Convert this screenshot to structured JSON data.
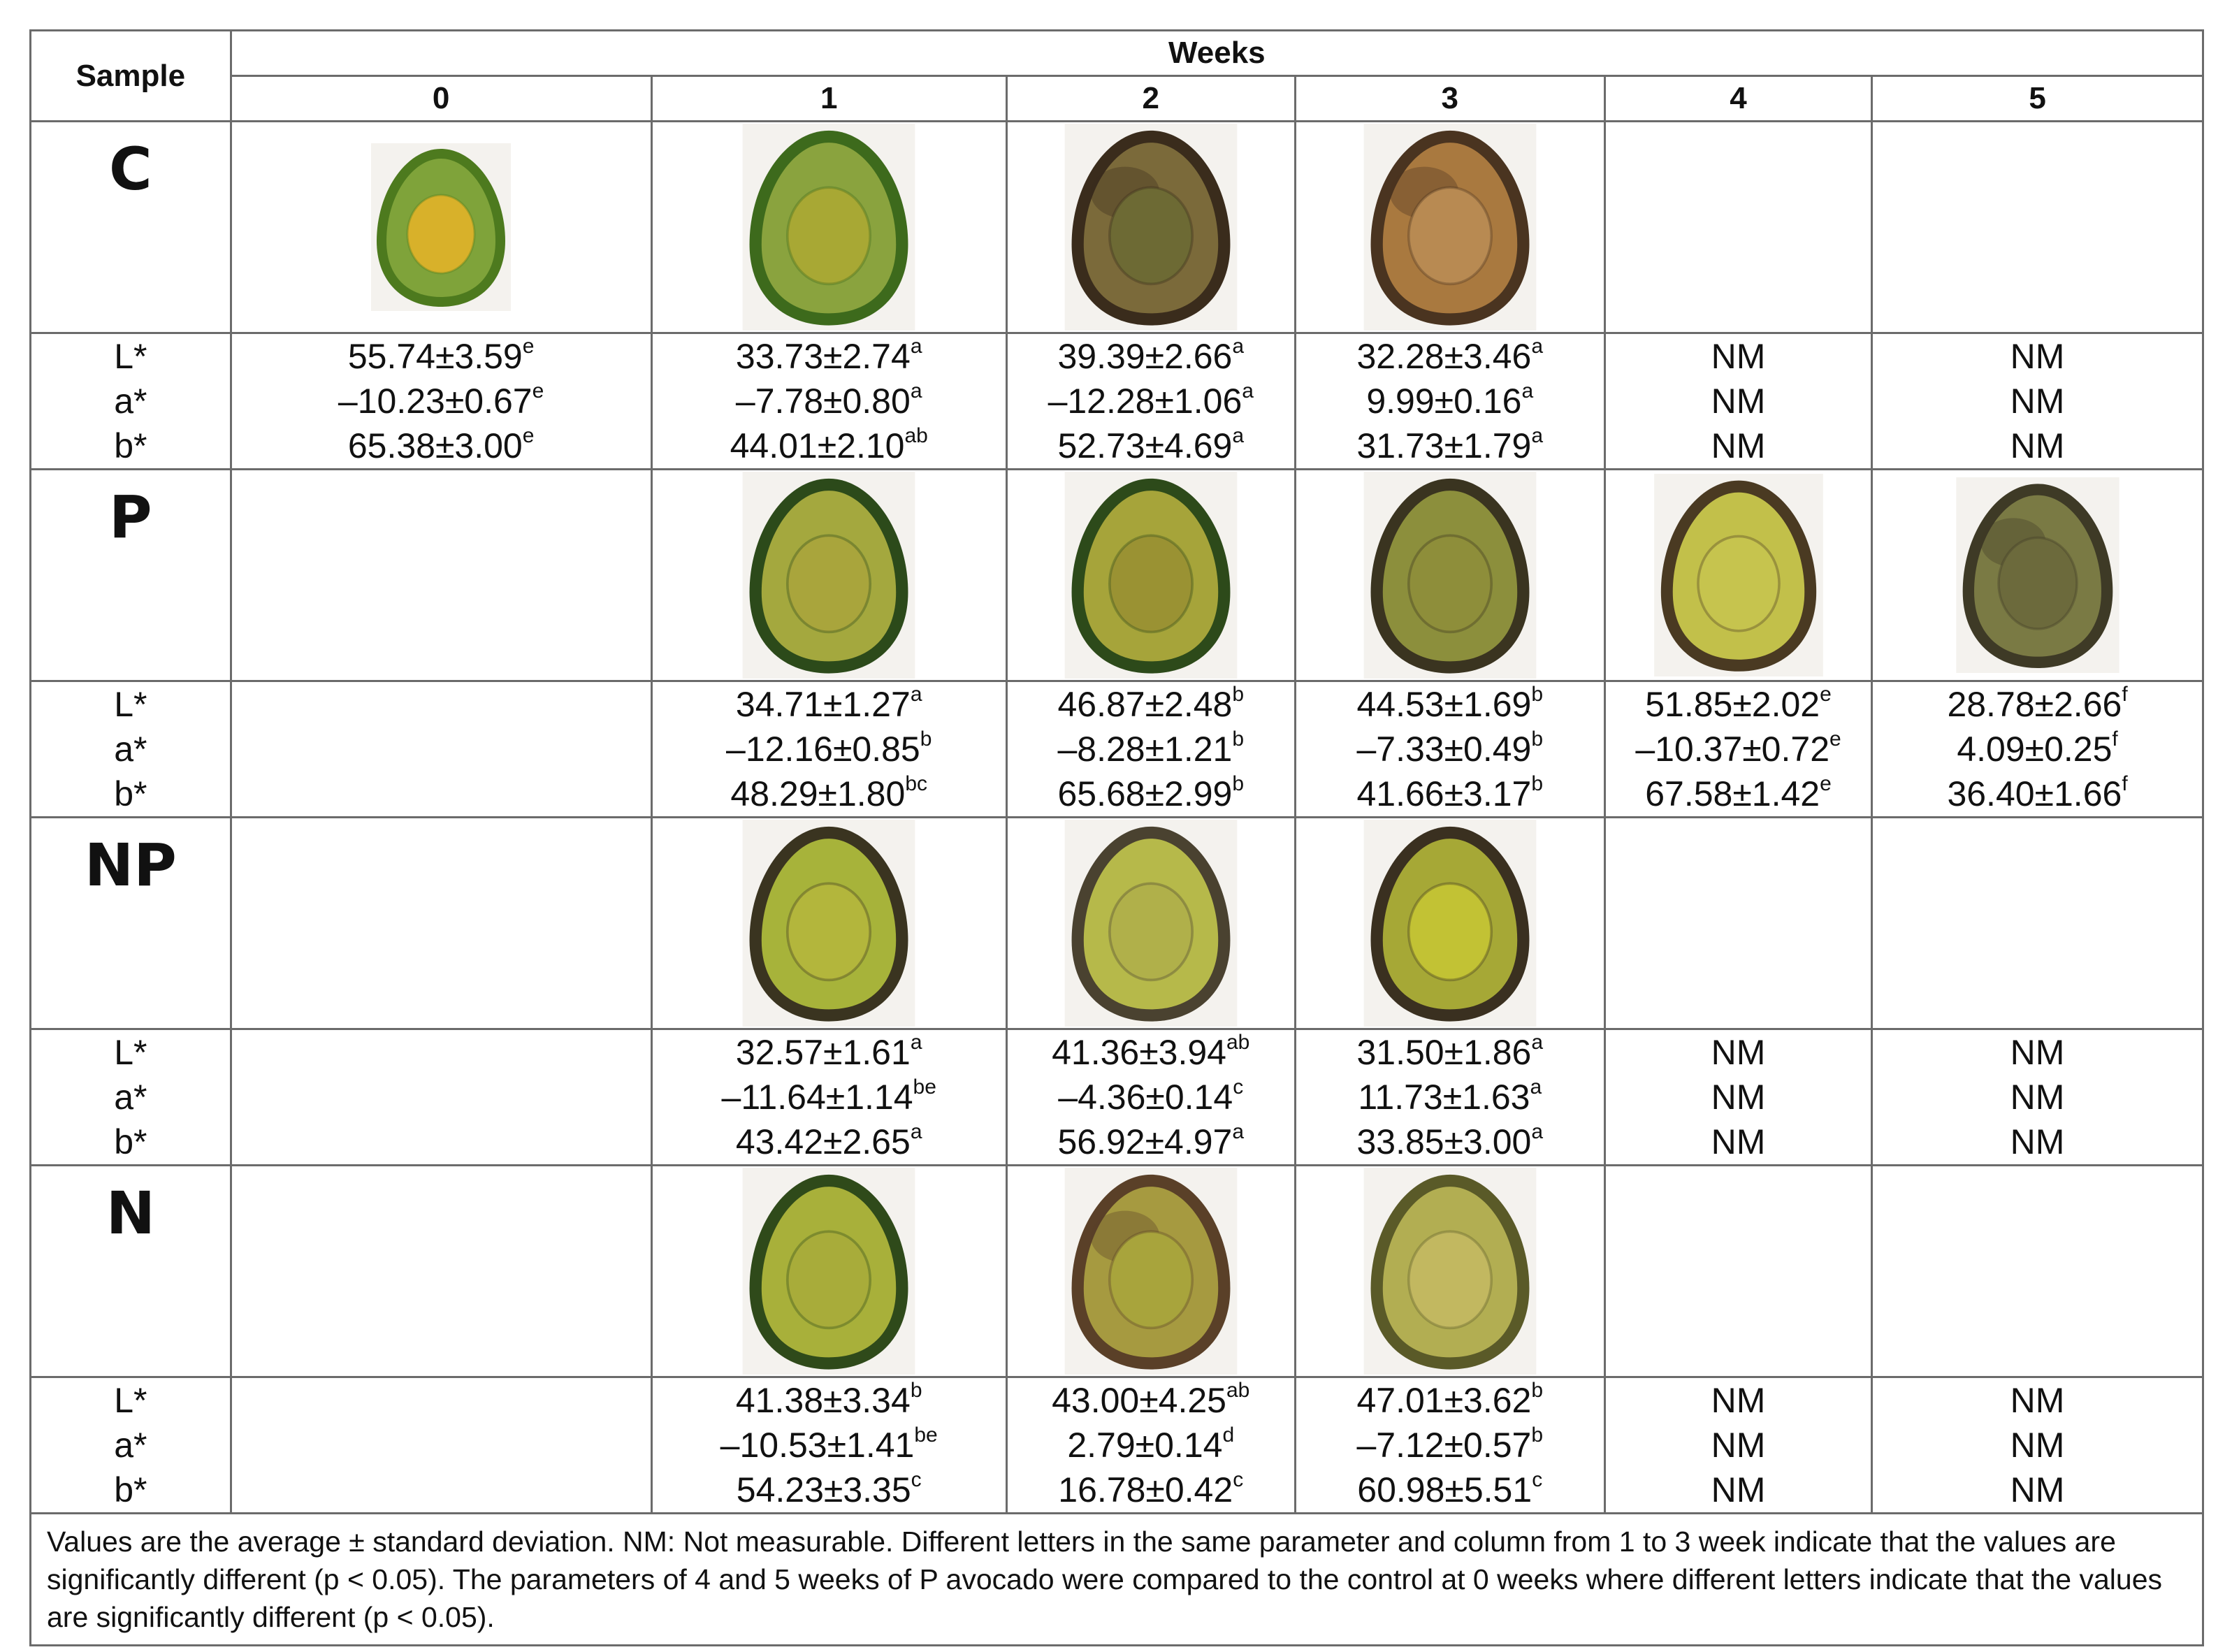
{
  "header": {
    "sample": "Sample",
    "weeks": "Weeks",
    "week_cols": [
      "0",
      "1",
      "2",
      "3",
      "4",
      "5"
    ]
  },
  "params": [
    "L*",
    "a*",
    "b*"
  ],
  "samples": [
    {
      "name": "C",
      "photos": [
        {
          "week": 0,
          "flesh": "#7fa33a",
          "skin": "#4d7a1e",
          "pit": "#d8b12a",
          "variant": "fresh"
        },
        {
          "week": 1,
          "flesh": "#8aa33e",
          "skin": "#3d6a1c",
          "pit": "#a8a834",
          "variant": "fresh"
        },
        {
          "week": 2,
          "flesh": "#7b6a3a",
          "skin": "#3a2c1c",
          "pit": "#6d6a34",
          "variant": "brown"
        },
        {
          "week": 3,
          "flesh": "#a9793f",
          "skin": "#4a3420",
          "pit": "#b88a52",
          "variant": "brown"
        }
      ],
      "values": [
        [
          {
            "v": "55.74±3.59",
            "s": "e"
          },
          {
            "v": "–10.23±0.67",
            "s": "e"
          },
          {
            "v": "65.38±3.00",
            "s": "e"
          }
        ],
        [
          {
            "v": "33.73±2.74",
            "s": "a"
          },
          {
            "v": "–7.78±0.80",
            "s": "a"
          },
          {
            "v": "44.01±2.10",
            "s": "ab"
          }
        ],
        [
          {
            "v": "39.39±2.66",
            "s": "a"
          },
          {
            "v": "–12.28±1.06",
            "s": "a"
          },
          {
            "v": "52.73±4.69",
            "s": "a"
          }
        ],
        [
          {
            "v": "32.28±3.46",
            "s": "a"
          },
          {
            "v": "9.99±0.16",
            "s": "a"
          },
          {
            "v": "31.73±1.79",
            "s": "a"
          }
        ],
        [
          {
            "v": "NM",
            "s": ""
          },
          {
            "v": "NM",
            "s": ""
          },
          {
            "v": "NM",
            "s": ""
          }
        ],
        [
          {
            "v": "NM",
            "s": ""
          },
          {
            "v": "NM",
            "s": ""
          },
          {
            "v": "NM",
            "s": ""
          }
        ]
      ]
    },
    {
      "name": "P",
      "photos": [
        null,
        {
          "week": 1,
          "flesh": "#a4a83e",
          "skin": "#2c4a1a",
          "pit": "#a9a53c",
          "variant": "fresh"
        },
        {
          "week": 2,
          "flesh": "#a6a43a",
          "skin": "#2d4a1a",
          "pit": "#9a9233",
          "variant": "fresh"
        },
        {
          "week": 3,
          "flesh": "#8c8f3c",
          "skin": "#3a3420",
          "pit": "#8e8e3a",
          "variant": "fresh"
        },
        {
          "week": 4,
          "flesh": "#c2c04a",
          "skin": "#4a3a22",
          "pit": "#c6c44e",
          "variant": "fresh"
        },
        {
          "week": 5,
          "flesh": "#7a7a44",
          "skin": "#3e3a26",
          "pit": "#6c6a3c",
          "variant": "brown"
        }
      ],
      "values": [
        [
          {
            "v": "",
            "s": ""
          },
          {
            "v": "",
            "s": ""
          },
          {
            "v": "",
            "s": ""
          }
        ],
        [
          {
            "v": "34.71±1.27",
            "s": "a"
          },
          {
            "v": "–12.16±0.85",
            "s": "b"
          },
          {
            "v": "48.29±1.80",
            "s": "bc"
          }
        ],
        [
          {
            "v": "46.87±2.48",
            "s": "b"
          },
          {
            "v": "–8.28±1.21",
            "s": "b"
          },
          {
            "v": "65.68±2.99",
            "s": "b"
          }
        ],
        [
          {
            "v": "44.53±1.69",
            "s": "b"
          },
          {
            "v": "–7.33±0.49",
            "s": "b"
          },
          {
            "v": "41.66±3.17",
            "s": "b"
          }
        ],
        [
          {
            "v": "51.85±2.02",
            "s": "e"
          },
          {
            "v": "–10.37±0.72",
            "s": "e"
          },
          {
            "v": "67.58±1.42",
            "s": "e"
          }
        ],
        [
          {
            "v": "28.78±2.66",
            "s": "f"
          },
          {
            "v": "4.09±0.25",
            "s": "f"
          },
          {
            "v": "36.40±1.66",
            "s": "f"
          }
        ]
      ]
    },
    {
      "name": "NP",
      "photos": [
        null,
        {
          "week": 1,
          "flesh": "#a7b33a",
          "skin": "#3a3420",
          "pit": "#b3b63c",
          "variant": "fresh"
        },
        {
          "week": 2,
          "flesh": "#b6b94a",
          "skin": "#4a4230",
          "pit": "#b0b04a",
          "variant": "fresh"
        },
        {
          "week": 3,
          "flesh": "#a6a836",
          "skin": "#3a3020",
          "pit": "#c2c234",
          "variant": "fresh"
        }
      ],
      "values": [
        [
          {
            "v": "",
            "s": ""
          },
          {
            "v": "",
            "s": ""
          },
          {
            "v": "",
            "s": ""
          }
        ],
        [
          {
            "v": "32.57±1.61",
            "s": "a"
          },
          {
            "v": "–11.64±1.14",
            "s": "be"
          },
          {
            "v": "43.42±2.65",
            "s": "a"
          }
        ],
        [
          {
            "v": "41.36±3.94",
            "s": "ab"
          },
          {
            "v": "–4.36±0.14",
            "s": "c"
          },
          {
            "v": "56.92±4.97",
            "s": "a"
          }
        ],
        [
          {
            "v": "31.50±1.86",
            "s": "a"
          },
          {
            "v": "11.73±1.63",
            "s": "a"
          },
          {
            "v": "33.85±3.00",
            "s": "a"
          }
        ],
        [
          {
            "v": "NM",
            "s": ""
          },
          {
            "v": "NM",
            "s": ""
          },
          {
            "v": "NM",
            "s": ""
          }
        ],
        [
          {
            "v": "NM",
            "s": ""
          },
          {
            "v": "NM",
            "s": ""
          },
          {
            "v": "NM",
            "s": ""
          }
        ]
      ]
    },
    {
      "name": "N",
      "photos": [
        null,
        {
          "week": 1,
          "flesh": "#a8b03a",
          "skin": "#2f4a1a",
          "pit": "#a8ac3a",
          "variant": "fresh"
        },
        {
          "week": 2,
          "flesh": "#a69a40",
          "skin": "#5a4028",
          "pit": "#a8a43c",
          "variant": "brown"
        },
        {
          "week": 3,
          "flesh": "#b2ae52",
          "skin": "#5a5a28",
          "pit": "#c2b860",
          "variant": "fresh"
        }
      ],
      "values": [
        [
          {
            "v": "",
            "s": ""
          },
          {
            "v": "",
            "s": ""
          },
          {
            "v": "",
            "s": ""
          }
        ],
        [
          {
            "v": "41.38±3.34",
            "s": "b"
          },
          {
            "v": "–10.53±1.41",
            "s": "be"
          },
          {
            "v": "54.23±3.35",
            "s": "c"
          }
        ],
        [
          {
            "v": "43.00±4.25",
            "s": "ab"
          },
          {
            "v": "2.79±0.14",
            "s": "d"
          },
          {
            "v": "16.78±0.42",
            "s": "c"
          }
        ],
        [
          {
            "v": "47.01±3.62",
            "s": "b"
          },
          {
            "v": "–7.12±0.57",
            "s": "b"
          },
          {
            "v": "60.98±5.51",
            "s": "c"
          }
        ],
        [
          {
            "v": "NM",
            "s": ""
          },
          {
            "v": "NM",
            "s": ""
          },
          {
            "v": "NM",
            "s": ""
          }
        ],
        [
          {
            "v": "NM",
            "s": ""
          },
          {
            "v": "NM",
            "s": ""
          },
          {
            "v": "NM",
            "s": ""
          }
        ]
      ]
    }
  ],
  "footnote": "Values are the average ± standard deviation. NM: Not measurable. Different letters in the same parameter and column from 1 to 3 week indicate that the values are significantly different (p < 0.05). The parameters of 4 and 5 weeks of P avocado were compared to the control at 0 weeks where different letters indicate that the values are significantly different (p < 0.05)."
}
